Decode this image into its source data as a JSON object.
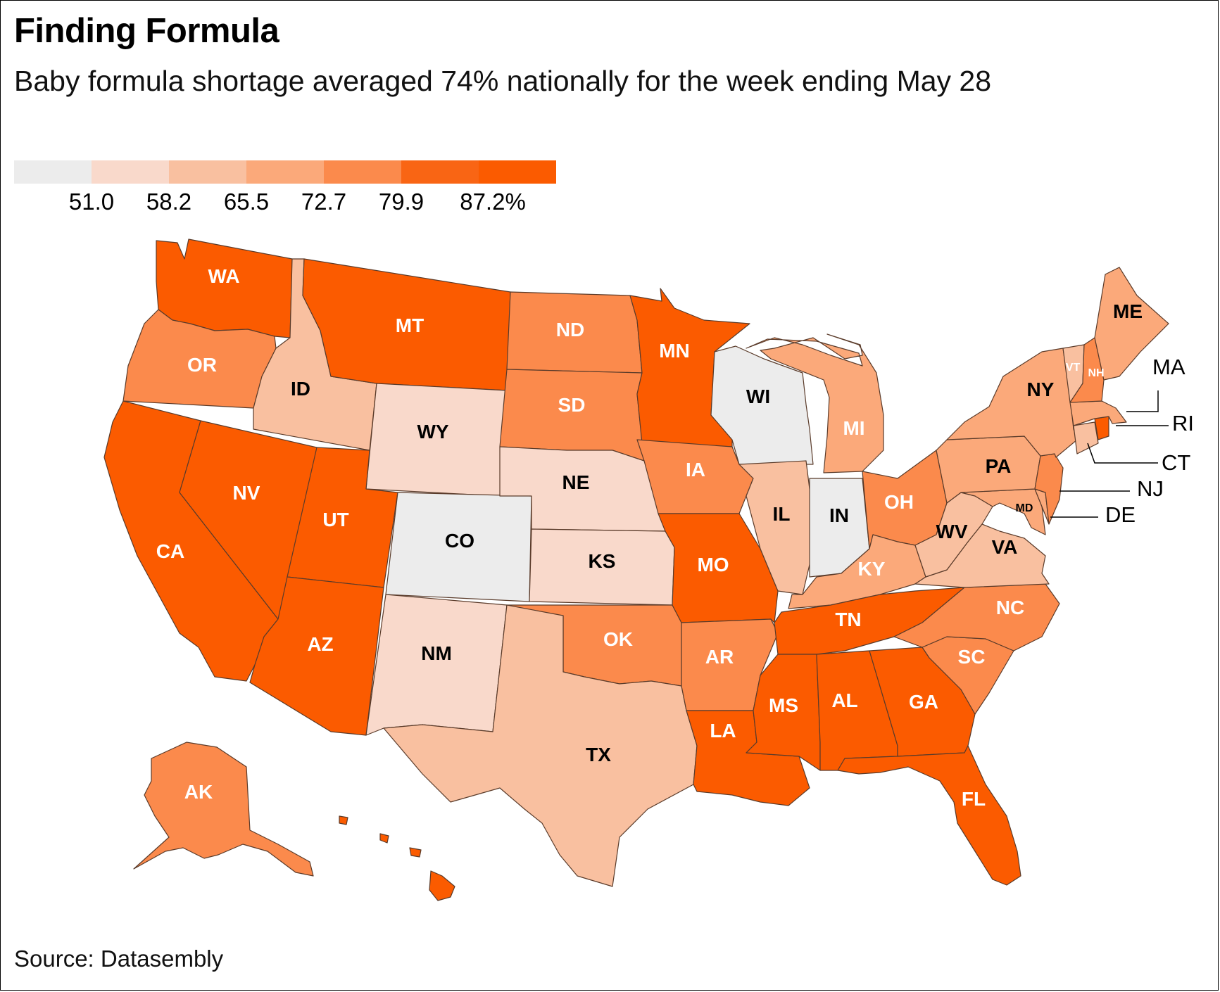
{
  "title": "Finding Formula",
  "subtitle": "Baby formula shortage averaged 74% nationally for the week ending May 28",
  "source": "Source: Datasembly",
  "legend": {
    "colors": [
      "#ececec",
      "#f9d9cb",
      "#f9c0a0",
      "#fba97a",
      "#fb8a4c",
      "#f96514",
      "#fb5b00"
    ],
    "labels": [
      "51.0",
      "58.2",
      "65.5",
      "72.7",
      "79.9",
      "87.2%"
    ]
  },
  "map_data": {
    "type": "choropleth",
    "states": [
      {
        "abbr": "WA",
        "color": "#fb5b00"
      },
      {
        "abbr": "OR",
        "color": "#fb8a4c"
      },
      {
        "abbr": "CA",
        "color": "#fb5b00"
      },
      {
        "abbr": "ID",
        "color": "#f9c0a0"
      },
      {
        "abbr": "NV",
        "color": "#fb5b00"
      },
      {
        "abbr": "MT",
        "color": "#fb5b00"
      },
      {
        "abbr": "WY",
        "color": "#f9d9cb"
      },
      {
        "abbr": "UT",
        "color": "#fb5b00"
      },
      {
        "abbr": "AZ",
        "color": "#fb5b00"
      },
      {
        "abbr": "CO",
        "color": "#ececec"
      },
      {
        "abbr": "NM",
        "color": "#f9d9cb"
      },
      {
        "abbr": "ND",
        "color": "#fb8a4c"
      },
      {
        "abbr": "SD",
        "color": "#fb8a4c"
      },
      {
        "abbr": "NE",
        "color": "#f9d9cb"
      },
      {
        "abbr": "KS",
        "color": "#f9d9cb"
      },
      {
        "abbr": "OK",
        "color": "#fb8a4c"
      },
      {
        "abbr": "TX",
        "color": "#f9c0a0"
      },
      {
        "abbr": "MN",
        "color": "#fb5b00"
      },
      {
        "abbr": "IA",
        "color": "#fb8a4c"
      },
      {
        "abbr": "MO",
        "color": "#fb5b00"
      },
      {
        "abbr": "AR",
        "color": "#fb8a4c"
      },
      {
        "abbr": "LA",
        "color": "#fb5b00"
      },
      {
        "abbr": "WI",
        "color": "#ececec"
      },
      {
        "abbr": "IL",
        "color": "#f9c0a0"
      },
      {
        "abbr": "IN",
        "color": "#ececec"
      },
      {
        "abbr": "MI",
        "color": "#fba97a"
      },
      {
        "abbr": "OH",
        "color": "#fb8a4c"
      },
      {
        "abbr": "KY",
        "color": "#fba97a"
      },
      {
        "abbr": "TN",
        "color": "#fb5b00"
      },
      {
        "abbr": "MS",
        "color": "#fb5b00"
      },
      {
        "abbr": "AL",
        "color": "#fb5b00"
      },
      {
        "abbr": "GA",
        "color": "#fb5b00"
      },
      {
        "abbr": "FL",
        "color": "#fb5b00"
      },
      {
        "abbr": "SC",
        "color": "#fb8a4c"
      },
      {
        "abbr": "NC",
        "color": "#fb8a4c"
      },
      {
        "abbr": "VA",
        "color": "#f9c0a0"
      },
      {
        "abbr": "WV",
        "color": "#f9c0a0"
      },
      {
        "abbr": "MD",
        "color": "#fba97a"
      },
      {
        "abbr": "DE",
        "color": "#fba97a"
      },
      {
        "abbr": "PA",
        "color": "#fba97a"
      },
      {
        "abbr": "NJ",
        "color": "#fb8a4c"
      },
      {
        "abbr": "NY",
        "color": "#fba97a"
      },
      {
        "abbr": "CT",
        "color": "#f9c0a0"
      },
      {
        "abbr": "RI",
        "color": "#fb5b00"
      },
      {
        "abbr": "MA",
        "color": "#fba97a"
      },
      {
        "abbr": "VT",
        "color": "#f9c0a0"
      },
      {
        "abbr": "NH",
        "color": "#fb8a4c"
      },
      {
        "abbr": "ME",
        "color": "#fba97a"
      },
      {
        "abbr": "AK",
        "color": "#fb8a4c"
      },
      {
        "abbr": "HI",
        "color": "#fb5b00"
      }
    ]
  }
}
